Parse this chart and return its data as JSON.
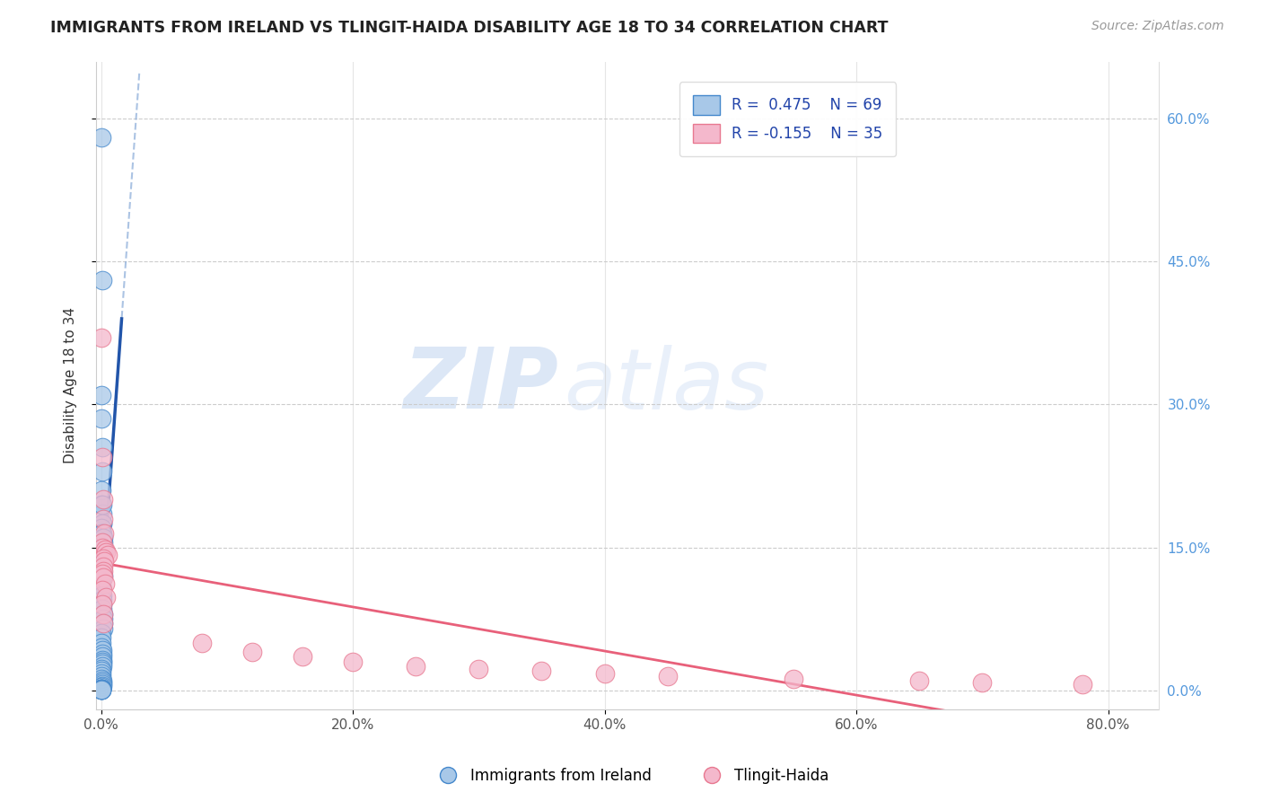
{
  "title": "IMMIGRANTS FROM IRELAND VS TLINGIT-HAIDA DISABILITY AGE 18 TO 34 CORRELATION CHART",
  "source": "Source: ZipAtlas.com",
  "ylabel": "Disability Age 18 to 34",
  "legend_label1": "Immigrants from Ireland",
  "legend_label2": "Tlingit-Haida",
  "r1": 0.475,
  "n1": 69,
  "r2": -0.155,
  "n2": 35,
  "xlim": [
    -0.004,
    0.84
  ],
  "ylim": [
    -0.02,
    0.66
  ],
  "xticks": [
    0.0,
    0.2,
    0.4,
    0.6,
    0.8
  ],
  "xtick_labels": [
    "0.0%",
    "20.0%",
    "40.0%",
    "60.0%",
    "80.0%"
  ],
  "yticks": [
    0.0,
    0.15,
    0.3,
    0.45,
    0.6
  ],
  "ytick_labels_right": [
    "0.0%",
    "15.0%",
    "30.0%",
    "45.0%",
    "60.0%"
  ],
  "color_blue": "#a8c8e8",
  "color_pink": "#f4b8cc",
  "edge_blue": "#4488cc",
  "edge_pink": "#e87890",
  "line_blue_color": "#2255aa",
  "line_pink_color": "#e8607a",
  "watermark_zip": "ZIP",
  "watermark_atlas": "atlas",
  "bg_color": "#ffffff",
  "grid_color": "#cccccc",
  "title_color": "#222222",
  "source_color": "#999999",
  "right_axis_color": "#5599dd",
  "blue_points": [
    [
      0.0002,
      0.58
    ],
    [
      0.0008,
      0.43
    ],
    [
      0.0003,
      0.31
    ],
    [
      0.0005,
      0.285
    ],
    [
      0.0008,
      0.255
    ],
    [
      0.0012,
      0.23
    ],
    [
      0.0002,
      0.21
    ],
    [
      0.0004,
      0.195
    ],
    [
      0.0006,
      0.175
    ],
    [
      0.0007,
      0.185
    ],
    [
      0.0009,
      0.175
    ],
    [
      0.001,
      0.195
    ],
    [
      0.0003,
      0.17
    ],
    [
      0.0005,
      0.165
    ],
    [
      0.0006,
      0.155
    ],
    [
      0.0008,
      0.16
    ],
    [
      0.001,
      0.165
    ],
    [
      0.0012,
      0.15
    ],
    [
      0.0014,
      0.155
    ],
    [
      0.0016,
      0.16
    ],
    [
      0.0018,
      0.15
    ],
    [
      0.002,
      0.145
    ],
    [
      0.0004,
      0.14
    ],
    [
      0.0006,
      0.135
    ],
    [
      0.0008,
      0.13
    ],
    [
      0.001,
      0.13
    ],
    [
      0.0012,
      0.125
    ],
    [
      0.0014,
      0.12
    ],
    [
      0.0002,
      0.115
    ],
    [
      0.0003,
      0.11
    ],
    [
      0.0004,
      0.105
    ],
    [
      0.0006,
      0.1
    ],
    [
      0.0008,
      0.095
    ],
    [
      0.001,
      0.09
    ],
    [
      0.0012,
      0.085
    ],
    [
      0.0014,
      0.08
    ],
    [
      0.0016,
      0.075
    ],
    [
      0.0018,
      0.07
    ],
    [
      0.002,
      0.065
    ],
    [
      0.0002,
      0.06
    ],
    [
      0.0003,
      0.055
    ],
    [
      0.0004,
      0.05
    ],
    [
      0.0005,
      0.045
    ],
    [
      0.0006,
      0.042
    ],
    [
      0.0007,
      0.038
    ],
    [
      0.0008,
      0.035
    ],
    [
      0.0009,
      0.032
    ],
    [
      0.001,
      0.03
    ],
    [
      0.0011,
      0.028
    ],
    [
      0.0012,
      0.025
    ],
    [
      0.0001,
      0.022
    ],
    [
      0.0002,
      0.02
    ],
    [
      0.0003,
      0.018
    ],
    [
      0.0004,
      0.015
    ],
    [
      0.0005,
      0.012
    ],
    [
      0.0006,
      0.01
    ],
    [
      0.0007,
      0.008
    ],
    [
      0.0008,
      0.006
    ],
    [
      0.0009,
      0.004
    ],
    [
      0.0001,
      0.003
    ],
    [
      0.0002,
      0.002
    ],
    [
      0.0003,
      0.002
    ],
    [
      0.0004,
      0.002
    ],
    [
      0.0005,
      0.002
    ],
    [
      0.0001,
      0.001
    ],
    [
      0.0002,
      0.001
    ],
    [
      0.0003,
      0.001
    ],
    [
      0.0004,
      0.001
    ],
    [
      0.0005,
      0.001
    ]
  ],
  "pink_points": [
    [
      0.0005,
      0.37
    ],
    [
      0.001,
      0.245
    ],
    [
      0.002,
      0.2
    ],
    [
      0.0015,
      0.18
    ],
    [
      0.0025,
      0.165
    ],
    [
      0.001,
      0.155
    ],
    [
      0.0012,
      0.15
    ],
    [
      0.003,
      0.148
    ],
    [
      0.004,
      0.145
    ],
    [
      0.005,
      0.142
    ],
    [
      0.002,
      0.138
    ],
    [
      0.0025,
      0.135
    ],
    [
      0.0015,
      0.13
    ],
    [
      0.002,
      0.125
    ],
    [
      0.0012,
      0.122
    ],
    [
      0.0018,
      0.118
    ],
    [
      0.003,
      0.112
    ],
    [
      0.0008,
      0.105
    ],
    [
      0.0035,
      0.098
    ],
    [
      0.001,
      0.09
    ],
    [
      0.0015,
      0.08
    ],
    [
      0.002,
      0.07
    ],
    [
      0.08,
      0.05
    ],
    [
      0.12,
      0.04
    ],
    [
      0.16,
      0.035
    ],
    [
      0.2,
      0.03
    ],
    [
      0.25,
      0.025
    ],
    [
      0.3,
      0.022
    ],
    [
      0.35,
      0.02
    ],
    [
      0.4,
      0.018
    ],
    [
      0.45,
      0.015
    ],
    [
      0.55,
      0.012
    ],
    [
      0.65,
      0.01
    ],
    [
      0.7,
      0.008
    ],
    [
      0.78,
      0.006
    ]
  ]
}
